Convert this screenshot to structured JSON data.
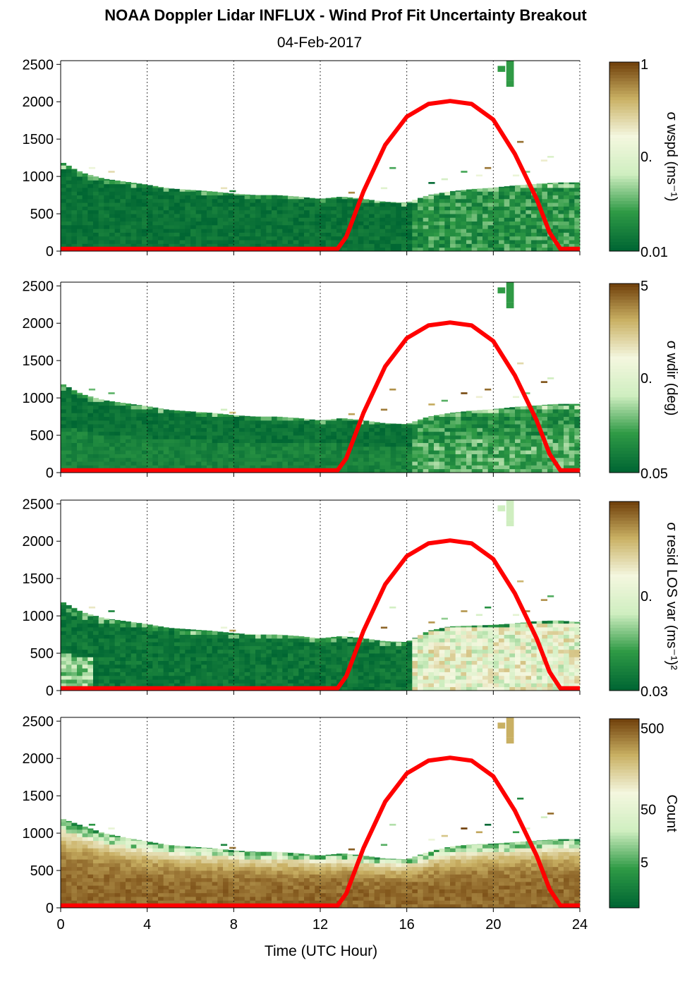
{
  "title": "NOAA Doppler Lidar INFLUX - Wind Prof Fit Uncertainty Breakout",
  "subtitle": "04-Feb-2017",
  "colors": {
    "green_dark": "#006633",
    "green_mid": "#2f9a45",
    "green_light": "#cfeec0",
    "cream": "#f4f7df",
    "tan": "#c9b063",
    "brown": "#6b3a06",
    "sun_curve": "#ff0000"
  },
  "chart_data": {
    "type": "heatmap",
    "x": {
      "label": "Time (UTC Hour)",
      "range": [
        0,
        24
      ],
      "ticks": [
        0,
        4,
        8,
        12,
        16,
        20,
        24
      ],
      "gridlines": [
        4,
        8,
        12,
        16,
        20,
        24
      ]
    },
    "y": {
      "label": "",
      "range": [
        0,
        2550
      ],
      "ticks": [
        0,
        500,
        1000,
        1500,
        2000,
        2500
      ]
    },
    "grid": "vertical-dotted",
    "overlay_curve": {
      "description": "",
      "color": "#ff0000",
      "points": [
        [
          0,
          30
        ],
        [
          12.8,
          30
        ],
        [
          13.2,
          190
        ],
        [
          14,
          800
        ],
        [
          15,
          1420
        ],
        [
          16,
          1800
        ],
        [
          17,
          1970
        ],
        [
          18,
          2010
        ],
        [
          19,
          1970
        ],
        [
          20,
          1760
        ],
        [
          21,
          1300
        ],
        [
          22,
          700
        ],
        [
          22.6,
          250
        ],
        [
          23.1,
          30
        ],
        [
          24,
          30
        ]
      ]
    },
    "panels": [
      {
        "id": "wspd",
        "colorbar_label": "σ wspd (ms⁻¹)",
        "colorbar_ticks": [
          "1",
          "0.",
          "0.01"
        ],
        "top_profile": [
          [
            0,
            1200
          ],
          [
            1,
            1050
          ],
          [
            2,
            970
          ],
          [
            3,
            930
          ],
          [
            4,
            890
          ],
          [
            5,
            840
          ],
          [
            6,
            820
          ],
          [
            7,
            800
          ],
          [
            8,
            770
          ],
          [
            9,
            750
          ],
          [
            10,
            750
          ],
          [
            11,
            730
          ],
          [
            12,
            700
          ],
          [
            13,
            730
          ],
          [
            14,
            700
          ],
          [
            15,
            660
          ],
          [
            16,
            650
          ],
          [
            17,
            750
          ],
          [
            18,
            800
          ],
          [
            19,
            830
          ],
          [
            20,
            850
          ],
          [
            21,
            880
          ],
          [
            22,
            900
          ],
          [
            23,
            920
          ],
          [
            23.8,
            920
          ]
        ],
        "dominant_color": "#006633"
      },
      {
        "id": "wdir",
        "colorbar_label": "σ wdir (deg)",
        "colorbar_ticks": [
          "5",
          "0.",
          "0.05"
        ],
        "top_profile": [
          [
            0,
            1200
          ],
          [
            1,
            1050
          ],
          [
            2,
            970
          ],
          [
            3,
            930
          ],
          [
            4,
            890
          ],
          [
            5,
            840
          ],
          [
            6,
            820
          ],
          [
            7,
            800
          ],
          [
            8,
            770
          ],
          [
            9,
            750
          ],
          [
            10,
            750
          ],
          [
            11,
            730
          ],
          [
            12,
            700
          ],
          [
            13,
            730
          ],
          [
            14,
            700
          ],
          [
            15,
            660
          ],
          [
            16,
            650
          ],
          [
            17,
            750
          ],
          [
            18,
            800
          ],
          [
            19,
            830
          ],
          [
            20,
            850
          ],
          [
            21,
            880
          ],
          [
            22,
            900
          ],
          [
            23,
            920
          ],
          [
            23.8,
            920
          ]
        ],
        "dominant_color": "#0b6e36"
      },
      {
        "id": "resid",
        "colorbar_label": "σ resid LOS var (ms⁻¹)²",
        "colorbar_ticks": [
          "0.",
          "0.03"
        ],
        "top_profile": [
          [
            0,
            1200
          ],
          [
            1,
            1050
          ],
          [
            2,
            970
          ],
          [
            3,
            930
          ],
          [
            4,
            890
          ],
          [
            5,
            840
          ],
          [
            6,
            820
          ],
          [
            7,
            800
          ],
          [
            8,
            770
          ],
          [
            9,
            750
          ],
          [
            10,
            750
          ],
          [
            11,
            730
          ],
          [
            12,
            700
          ],
          [
            13,
            730
          ],
          [
            14,
            700
          ],
          [
            15,
            660
          ],
          [
            16,
            650
          ],
          [
            17,
            800
          ],
          [
            18,
            860
          ],
          [
            19,
            870
          ],
          [
            20,
            880
          ],
          [
            21,
            900
          ],
          [
            22,
            930
          ],
          [
            23,
            940
          ],
          [
            23.8,
            920
          ]
        ],
        "dominant_color": "#006633"
      },
      {
        "id": "count",
        "colorbar_label": "Count",
        "colorbar_ticks": [
          "500",
          "50",
          "5"
        ],
        "top_profile": [
          [
            0,
            1200
          ],
          [
            1,
            1100
          ],
          [
            2,
            1000
          ],
          [
            3,
            940
          ],
          [
            4,
            890
          ],
          [
            5,
            840
          ],
          [
            6,
            820
          ],
          [
            7,
            800
          ],
          [
            8,
            770
          ],
          [
            9,
            750
          ],
          [
            10,
            750
          ],
          [
            11,
            730
          ],
          [
            12,
            700
          ],
          [
            13,
            730
          ],
          [
            14,
            700
          ],
          [
            15,
            660
          ],
          [
            16,
            650
          ],
          [
            17,
            750
          ],
          [
            18,
            820
          ],
          [
            19,
            850
          ],
          [
            20,
            860
          ],
          [
            21,
            880
          ],
          [
            22,
            900
          ],
          [
            23,
            920
          ],
          [
            23.8,
            920
          ]
        ],
        "dominant_color": "#6b3a06"
      }
    ]
  }
}
